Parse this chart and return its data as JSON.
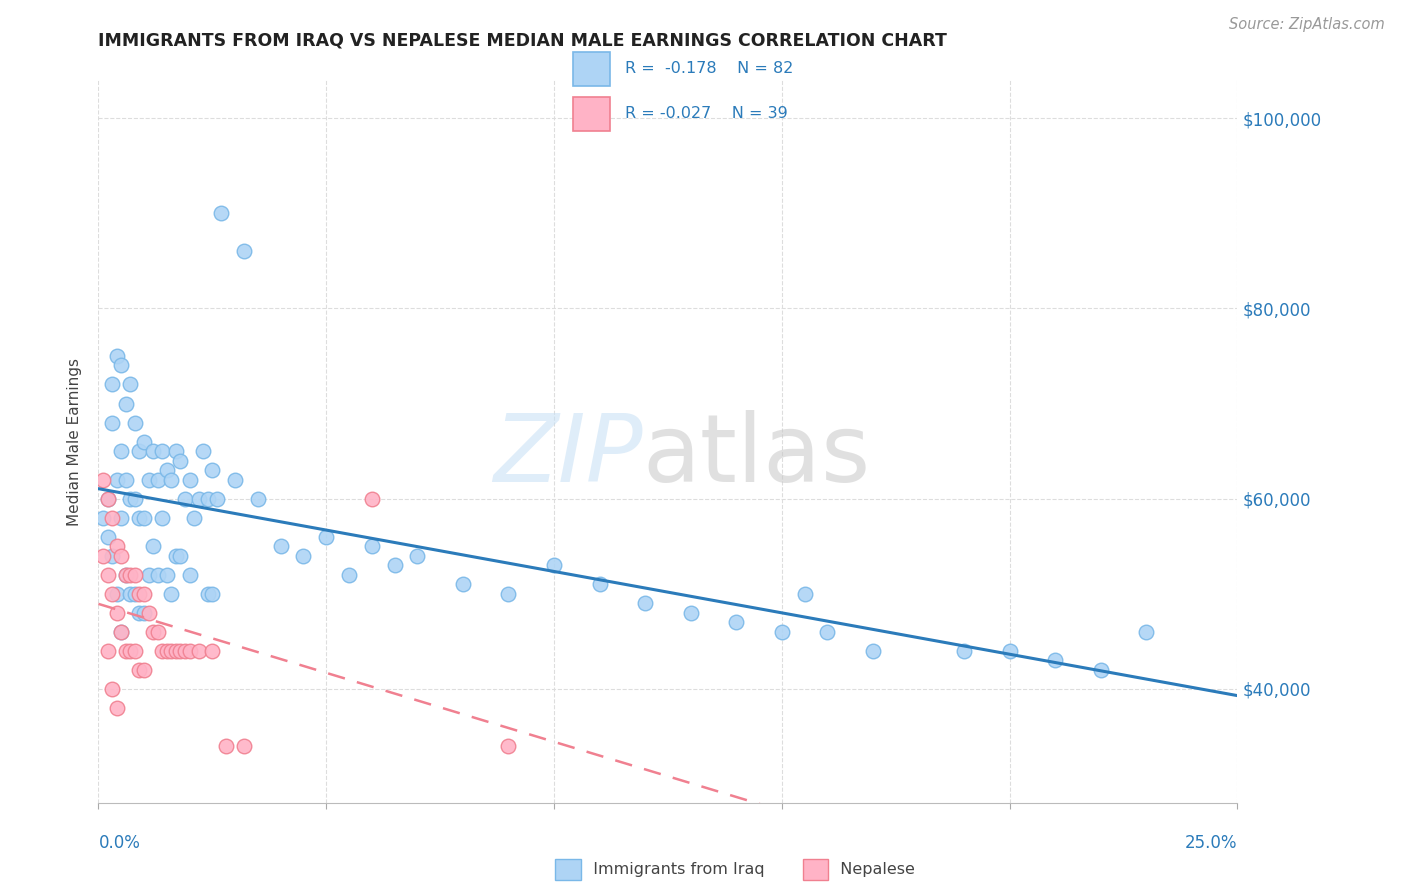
{
  "title": "IMMIGRANTS FROM IRAQ VS NEPALESE MEDIAN MALE EARNINGS CORRELATION CHART",
  "source": "Source: ZipAtlas.com",
  "ylabel": "Median Male Earnings",
  "yticks": [
    40000,
    60000,
    80000,
    100000
  ],
  "ytick_labels": [
    "$40,000",
    "$60,000",
    "$80,000",
    "$100,000"
  ],
  "xlim": [
    0.0,
    0.25
  ],
  "ylim": [
    28000,
    104000
  ],
  "iraq_color": "#aed4f5",
  "iraq_edge": "#7ab8e8",
  "nepal_color": "#ffb3c6",
  "nepal_edge": "#f08090",
  "trendline_iraq": "#2b7bba",
  "trendline_nepal": "#f08090",
  "text_blue": "#2b7bba",
  "watermark_zip_color": "#c5dff5",
  "watermark_atlas_color": "#c8c8c8",
  "iraq_x": [
    0.001,
    0.002,
    0.002,
    0.003,
    0.003,
    0.003,
    0.004,
    0.004,
    0.004,
    0.005,
    0.005,
    0.005,
    0.005,
    0.006,
    0.006,
    0.006,
    0.007,
    0.007,
    0.007,
    0.008,
    0.008,
    0.008,
    0.009,
    0.009,
    0.009,
    0.01,
    0.01,
    0.01,
    0.011,
    0.011,
    0.012,
    0.012,
    0.013,
    0.013,
    0.014,
    0.014,
    0.015,
    0.015,
    0.016,
    0.016,
    0.017,
    0.017,
    0.018,
    0.018,
    0.019,
    0.02,
    0.02,
    0.021,
    0.022,
    0.023,
    0.024,
    0.024,
    0.025,
    0.025,
    0.026,
    0.027,
    0.03,
    0.032,
    0.035,
    0.04,
    0.045,
    0.05,
    0.055,
    0.06,
    0.065,
    0.07,
    0.08,
    0.09,
    0.1,
    0.11,
    0.12,
    0.13,
    0.14,
    0.15,
    0.155,
    0.16,
    0.17,
    0.19,
    0.2,
    0.21,
    0.22,
    0.23
  ],
  "iraq_y": [
    58000,
    60000,
    56000,
    72000,
    68000,
    54000,
    75000,
    62000,
    50000,
    74000,
    65000,
    58000,
    46000,
    70000,
    62000,
    52000,
    72000,
    60000,
    50000,
    68000,
    60000,
    50000,
    65000,
    58000,
    48000,
    66000,
    58000,
    48000,
    62000,
    52000,
    65000,
    55000,
    62000,
    52000,
    65000,
    58000,
    63000,
    52000,
    62000,
    50000,
    65000,
    54000,
    64000,
    54000,
    60000,
    62000,
    52000,
    58000,
    60000,
    65000,
    60000,
    50000,
    63000,
    50000,
    60000,
    90000,
    62000,
    86000,
    60000,
    55000,
    54000,
    56000,
    52000,
    55000,
    53000,
    54000,
    51000,
    50000,
    53000,
    51000,
    49000,
    48000,
    47000,
    46000,
    50000,
    46000,
    44000,
    44000,
    44000,
    43000,
    42000,
    46000
  ],
  "nepal_x": [
    0.001,
    0.001,
    0.002,
    0.002,
    0.002,
    0.003,
    0.003,
    0.003,
    0.004,
    0.004,
    0.004,
    0.005,
    0.005,
    0.006,
    0.006,
    0.007,
    0.007,
    0.008,
    0.008,
    0.009,
    0.009,
    0.01,
    0.01,
    0.011,
    0.012,
    0.013,
    0.014,
    0.015,
    0.016,
    0.017,
    0.018,
    0.019,
    0.02,
    0.022,
    0.025,
    0.028,
    0.032,
    0.06,
    0.09
  ],
  "nepal_y": [
    62000,
    54000,
    60000,
    52000,
    44000,
    58000,
    50000,
    40000,
    55000,
    48000,
    38000,
    54000,
    46000,
    52000,
    44000,
    52000,
    44000,
    52000,
    44000,
    50000,
    42000,
    50000,
    42000,
    48000,
    46000,
    46000,
    44000,
    44000,
    44000,
    44000,
    44000,
    44000,
    44000,
    44000,
    44000,
    34000,
    34000,
    60000,
    34000
  ]
}
